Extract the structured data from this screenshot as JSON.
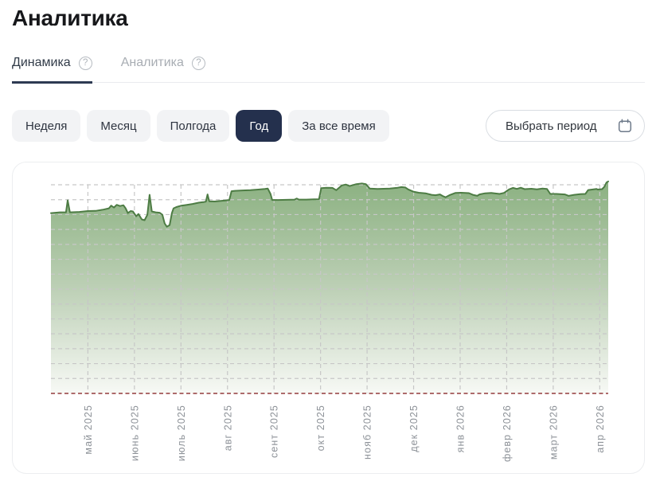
{
  "page": {
    "title": "Аналитика"
  },
  "tabs": [
    {
      "id": "dynamics",
      "label": "Динамика",
      "help_glyph": "?",
      "active": true
    },
    {
      "id": "analytics",
      "label": "Аналитика",
      "help_glyph": "?",
      "active": false
    }
  ],
  "filters": {
    "options": [
      {
        "id": "week",
        "label": "Неделя",
        "selected": false
      },
      {
        "id": "month",
        "label": "Месяц",
        "selected": false
      },
      {
        "id": "half_year",
        "label": "Полгода",
        "selected": false
      },
      {
        "id": "year",
        "label": "Год",
        "selected": true
      },
      {
        "id": "all_time",
        "label": "За все время",
        "selected": false
      }
    ],
    "date_picker": {
      "label": "Выбрать период",
      "icon": "calendar-icon"
    }
  },
  "colors": {
    "accent_dark": "#24304d",
    "tab_active_text": "#323c49",
    "tab_inactive_text": "#a8adb3",
    "tab_underline": "#2d3a52",
    "button_bg": "#f2f3f5",
    "picker_border": "#d9dde2",
    "card_border": "#eceef0"
  },
  "chart_data": {
    "type": "area",
    "title": "",
    "legend": "none",
    "x_tick_labels": [
      "май 2025",
      "июнь 2025",
      "июль 2025",
      "авг 2025",
      "сент 2025",
      "окт 2025",
      "нояб 2025",
      "дек 2025",
      "янв 2026",
      "февр 2026",
      "март 2026",
      "апр 2026"
    ],
    "y_axis": {
      "labels_visible": false,
      "range": [
        0,
        105
      ],
      "note": "no numeric y labels shown; values normalized: red dashed baseline = 0, top gridline = 100"
    },
    "grid": {
      "horizontal_lines": 14,
      "vertical_lines": 12,
      "style": "dashed",
      "color": "#c7c7c7"
    },
    "baseline": {
      "style": "dashed",
      "color": "#ad6b6b",
      "value": 0,
      "position": "bottom"
    },
    "area_gradient": [
      "#8db283",
      "#bdd0b6",
      "#f7f9f5"
    ],
    "series": [
      {
        "name": "Динамика",
        "color": "#4d7c44",
        "points": [
          [
            0,
            86.4
          ],
          [
            1.6,
            86.8
          ],
          [
            2.7,
            86.8
          ],
          [
            3,
            92.5
          ],
          [
            3.4,
            86.8
          ],
          [
            5.1,
            87
          ],
          [
            6.6,
            87.4
          ],
          [
            8,
            87.5
          ],
          [
            9.4,
            88.1
          ],
          [
            10.4,
            88.7
          ],
          [
            10.8,
            90
          ],
          [
            11.3,
            89.1
          ],
          [
            11.8,
            90.4
          ],
          [
            12.4,
            89.8
          ],
          [
            13,
            90.2
          ],
          [
            13.4,
            88.7
          ],
          [
            13.8,
            86.4
          ],
          [
            14.3,
            87.4
          ],
          [
            14.7,
            87.2
          ],
          [
            15.3,
            84.9
          ],
          [
            15.7,
            86
          ],
          [
            16.3,
            83.4
          ],
          [
            16.8,
            83
          ],
          [
            17.3,
            85.6
          ],
          [
            17.7,
            95.2
          ],
          [
            18.1,
            87.2
          ],
          [
            18.8,
            86.8
          ],
          [
            19.5,
            86.6
          ],
          [
            20,
            85.6
          ],
          [
            20.4,
            81.5
          ],
          [
            20.8,
            79.9
          ],
          [
            21.3,
            80.7
          ],
          [
            21.7,
            86.4
          ],
          [
            22,
            88.7
          ],
          [
            22.5,
            89.3
          ],
          [
            23.4,
            90
          ],
          [
            24.4,
            90.4
          ],
          [
            25.4,
            90.8
          ],
          [
            26.5,
            91.4
          ],
          [
            27.4,
            91.7
          ],
          [
            27.8,
            91.9
          ],
          [
            28.1,
            95.4
          ],
          [
            28.4,
            92.1
          ],
          [
            29.4,
            92
          ],
          [
            30.5,
            92.3
          ],
          [
            31.5,
            92.5
          ],
          [
            32,
            92.7
          ],
          [
            32.4,
            96.9
          ],
          [
            33,
            97.1
          ],
          [
            34.4,
            97.3
          ],
          [
            35.8,
            97.4
          ],
          [
            37.2,
            97.7
          ],
          [
            38.4,
            98
          ],
          [
            38.9,
            98.2
          ],
          [
            39.4,
            95.6
          ],
          [
            39.7,
            92.7
          ],
          [
            40.8,
            92.7
          ],
          [
            42.2,
            92.8
          ],
          [
            43.7,
            92.9
          ],
          [
            44.1,
            93.4
          ],
          [
            44.5,
            92.9
          ],
          [
            45.8,
            92.9
          ],
          [
            47.2,
            93
          ],
          [
            48.1,
            93.1
          ],
          [
            48.5,
            98.4
          ],
          [
            49.4,
            98.6
          ],
          [
            50.5,
            98.5
          ],
          [
            51.2,
            97.4
          ],
          [
            52.2,
            99.7
          ],
          [
            52.9,
            100.1
          ],
          [
            53.6,
            99.4
          ],
          [
            54.8,
            100.3
          ],
          [
            55.8,
            100.6
          ],
          [
            56.5,
            100.3
          ],
          [
            57.2,
            98.2
          ],
          [
            58.6,
            98
          ],
          [
            60.8,
            98.2
          ],
          [
            62.2,
            98.6
          ],
          [
            62.9,
            98.9
          ],
          [
            63.6,
            98.7
          ],
          [
            64.1,
            97.8
          ],
          [
            65,
            96.7
          ],
          [
            66,
            96.2
          ],
          [
            67.2,
            95.9
          ],
          [
            68.3,
            95.2
          ],
          [
            69,
            95
          ],
          [
            69.8,
            95.4
          ],
          [
            70.3,
            94.6
          ],
          [
            70.8,
            94
          ],
          [
            71.5,
            95
          ],
          [
            72.6,
            96.1
          ],
          [
            73.6,
            96.2
          ],
          [
            75,
            96
          ],
          [
            75.7,
            95.2
          ],
          [
            76.5,
            94.7
          ],
          [
            76.9,
            95.4
          ],
          [
            77.9,
            95.9
          ],
          [
            79,
            96.1
          ],
          [
            80.5,
            95.6
          ],
          [
            81.3,
            96.1
          ],
          [
            82.2,
            97.8
          ],
          [
            82.9,
            98.5
          ],
          [
            83.6,
            98
          ],
          [
            84.3,
            98.6
          ],
          [
            85,
            97.9
          ],
          [
            86.2,
            98.1
          ],
          [
            87.2,
            97.8
          ],
          [
            88.2,
            98.2
          ],
          [
            89,
            98
          ],
          [
            89.6,
            95.6
          ],
          [
            90.7,
            95.6
          ],
          [
            92.2,
            95.4
          ],
          [
            92.9,
            94.7
          ],
          [
            93.9,
            95.2
          ],
          [
            95,
            95.5
          ],
          [
            95.9,
            95.6
          ],
          [
            96.4,
            97.5
          ],
          [
            97.1,
            97.7
          ],
          [
            97.9,
            98
          ],
          [
            98.1,
            97.7
          ],
          [
            98.9,
            97.9
          ],
          [
            99.3,
            99
          ],
          [
            99.7,
            101.1
          ],
          [
            100,
            101.6
          ]
        ]
      }
    ]
  }
}
